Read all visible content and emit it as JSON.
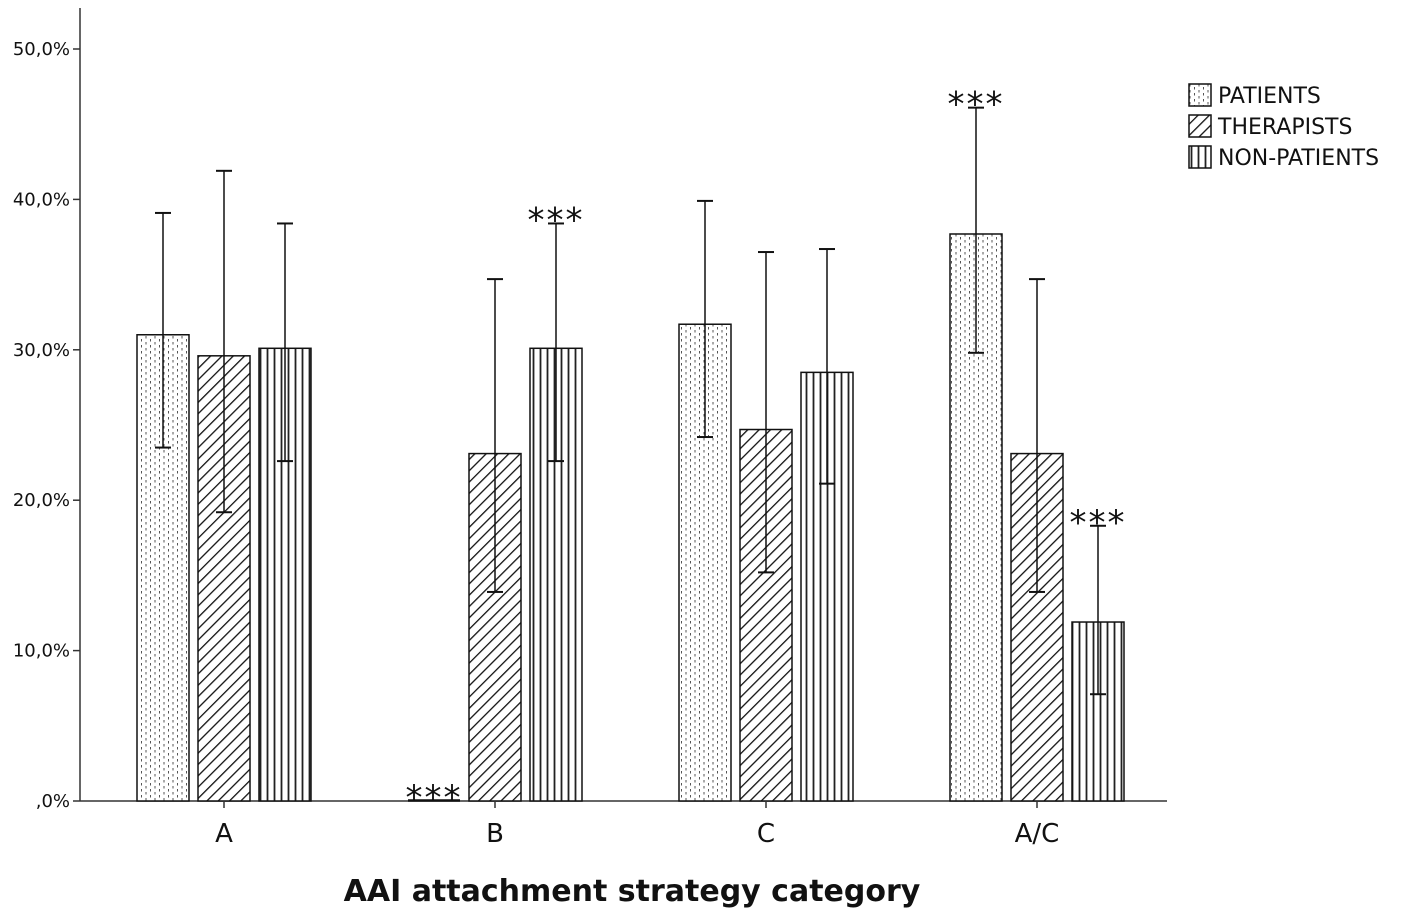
{
  "chart_data": {
    "type": "bar",
    "categories": [
      "A",
      "B",
      "C",
      "A/C"
    ],
    "series": [
      {
        "name": "PATIENTS",
        "pattern": "dots",
        "values": [
          31.0,
          0.0,
          31.7,
          37.7
        ],
        "err_low": [
          23.5,
          0.0,
          24.2,
          29.8
        ],
        "err_high": [
          39.1,
          0.0,
          39.9,
          46.1
        ]
      },
      {
        "name": "THERAPISTS",
        "pattern": "diagonal",
        "values": [
          29.6,
          23.1,
          24.7,
          23.1
        ],
        "err_low": [
          19.2,
          13.9,
          15.2,
          13.9
        ],
        "err_high": [
          41.9,
          34.7,
          36.5,
          34.7
        ]
      },
      {
        "name": "NON-PATIENTS",
        "pattern": "vertical",
        "values": [
          30.1,
          30.1,
          28.5,
          11.9
        ],
        "err_low": [
          22.6,
          22.6,
          21.1,
          7.1
        ],
        "err_high": [
          38.4,
          38.4,
          36.7,
          18.3
        ]
      }
    ],
    "yticks": [
      ",0%",
      "10,0%",
      "20,0%",
      "30,0%",
      "40,0%",
      "50,0%"
    ],
    "ylim": [
      0,
      52
    ],
    "xlabel": "AAI attachment strategy category",
    "ylabel": "",
    "title": "",
    "legend_position": "top-right",
    "annotations": [
      {
        "text": "***",
        "category": "B",
        "series": "PATIENTS",
        "y": 0.0
      },
      {
        "text": "***",
        "category": "B",
        "series": "NON-PATIENTS",
        "y": 38.4
      },
      {
        "text": "***",
        "category": "A/C",
        "series": "PATIENTS",
        "y": 46.1
      },
      {
        "text": "***",
        "category": "A/C",
        "series": "NON-PATIENTS",
        "y": 18.3
      }
    ],
    "grid": false
  }
}
